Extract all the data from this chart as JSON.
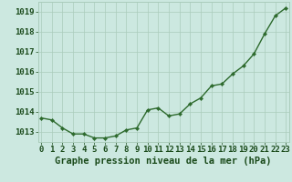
{
  "x": [
    0,
    1,
    2,
    3,
    4,
    5,
    6,
    7,
    8,
    9,
    10,
    11,
    12,
    13,
    14,
    15,
    16,
    17,
    18,
    19,
    20,
    21,
    22,
    23
  ],
  "y": [
    1013.7,
    1013.6,
    1013.2,
    1012.9,
    1012.9,
    1012.7,
    1012.7,
    1012.8,
    1013.1,
    1013.2,
    1014.1,
    1014.2,
    1013.8,
    1013.9,
    1014.4,
    1014.7,
    1015.3,
    1015.4,
    1015.9,
    1016.3,
    1016.9,
    1017.9,
    1018.8,
    1019.2
  ],
  "line_color": "#2d6a2d",
  "marker": "D",
  "marker_size": 2.2,
  "line_width": 1.0,
  "bg_color": "#cce8e0",
  "grid_color": "#aaccbb",
  "xlabel": "Graphe pression niveau de la mer (hPa)",
  "xlabel_fontsize": 7.5,
  "xlabel_color": "#1a4a1a",
  "tick_label_color": "#1a4a1a",
  "tick_fontsize": 6.5,
  "ylim": [
    1012.5,
    1019.5
  ],
  "yticks": [
    1013,
    1014,
    1015,
    1016,
    1017,
    1018,
    1019
  ],
  "xticks": [
    0,
    1,
    2,
    3,
    4,
    5,
    6,
    7,
    8,
    9,
    10,
    11,
    12,
    13,
    14,
    15,
    16,
    17,
    18,
    19,
    20,
    21,
    22,
    23
  ],
  "xlim": [
    -0.3,
    23.3
  ]
}
